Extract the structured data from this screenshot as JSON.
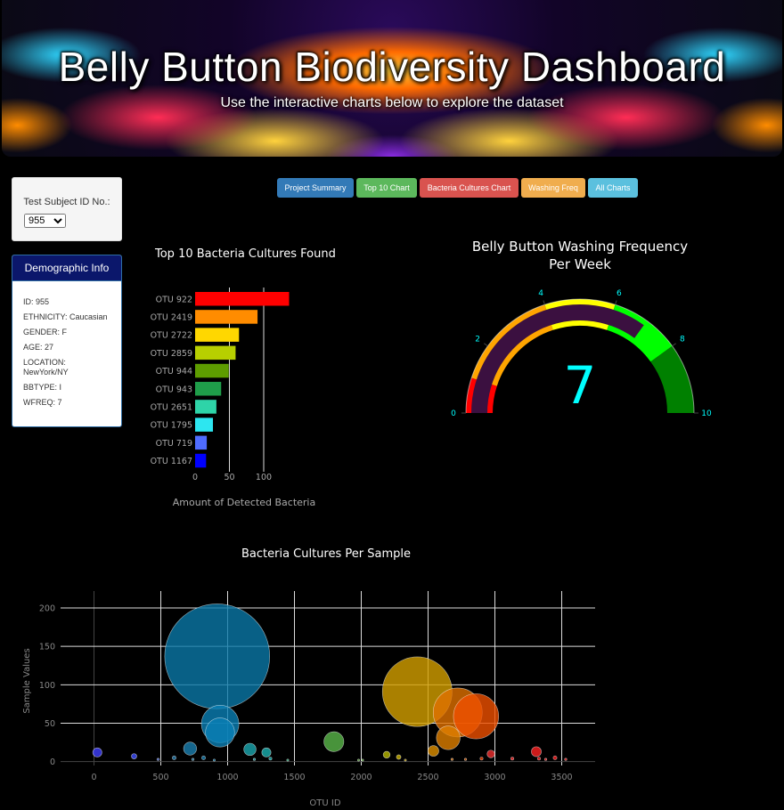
{
  "header": {
    "title": "Belly Button Biodiversity Dashboard",
    "subtitle": "Use the interactive charts below to explore the dataset"
  },
  "selector": {
    "label": "Test Subject ID No.:",
    "selected": "955"
  },
  "demographics": {
    "title": "Demographic Info",
    "lines": [
      "ID: 955",
      "ETHNICITY: Caucasian",
      "GENDER: F",
      "AGE: 27",
      "LOCATION: NewYork/NY",
      "BBTYPE: I",
      "WFREQ: 7"
    ]
  },
  "buttons": [
    {
      "label": "Project Summary",
      "color": "#337ab7"
    },
    {
      "label": "Top 10 Chart",
      "color": "#5cb85c"
    },
    {
      "label": "Bacteria Cultures Chart",
      "color": "#d9534f"
    },
    {
      "label": "Washing Freq",
      "color": "#f0ad4e"
    },
    {
      "label": "All Charts",
      "color": "#5bc0de"
    }
  ],
  "chart_data": [
    {
      "type": "bar",
      "orientation": "horizontal",
      "title": "Top 10 Bacteria Cultures Found",
      "xlabel": "Amount of Detected Bacteria",
      "ylabel": "",
      "categories": [
        "OTU 922",
        "OTU 2419",
        "OTU 2722",
        "OTU 2859",
        "OTU 944",
        "OTU 943",
        "OTU 2651",
        "OTU 1795",
        "OTU 719",
        "OTU 1167"
      ],
      "values": [
        137,
        91,
        64,
        59,
        49,
        38,
        31,
        26,
        17,
        16
      ],
      "colors": [
        "#ff0000",
        "#ff8c00",
        "#ffd700",
        "#b7cf00",
        "#5e9d00",
        "#1f9e4a",
        "#2ed4a8",
        "#2de6f0",
        "#4f6cff",
        "#0000ff"
      ],
      "xticks": [
        0,
        50,
        100
      ],
      "xlim": [
        0,
        140
      ],
      "grid": "vertical"
    },
    {
      "type": "gauge",
      "title": "Belly Button Washing Frequency Per Week",
      "value": 7,
      "range": [
        0,
        10
      ],
      "ticks": [
        0,
        2,
        4,
        6,
        8,
        10
      ],
      "steps": [
        {
          "range": [
            0,
            1
          ],
          "color": "#ff0000"
        },
        {
          "range": [
            1,
            4
          ],
          "color": "#ffa500"
        },
        {
          "range": [
            4,
            6
          ],
          "color": "#ffff00"
        },
        {
          "range": [
            6,
            8
          ],
          "color": "#00ff00"
        },
        {
          "range": [
            8,
            10
          ],
          "color": "#008000"
        }
      ],
      "bar_color": "#3b1040",
      "value_color": "#00ffff"
    },
    {
      "type": "scatter",
      "subtype": "bubble",
      "title": "Bacteria Cultures Per Sample",
      "xlabel": "OTU ID",
      "ylabel": "Sample Values",
      "xlim": [
        -250,
        3750
      ],
      "ylim": [
        -5,
        222
      ],
      "xticks": [
        0,
        500,
        1000,
        1500,
        2000,
        2500,
        3000,
        3500
      ],
      "yticks": [
        0,
        50,
        100,
        150,
        200
      ],
      "points": [
        {
          "x": 25,
          "y": 12,
          "s": 12,
          "c": "#4040ff"
        },
        {
          "x": 300,
          "y": 7,
          "s": 7,
          "c": "#4050ff"
        },
        {
          "x": 480,
          "y": 3,
          "s": 3,
          "c": "#4060d0"
        },
        {
          "x": 600,
          "y": 5,
          "s": 5,
          "c": "#2a7fb0"
        },
        {
          "x": 719,
          "y": 17,
          "s": 17,
          "c": "#1a7fb0"
        },
        {
          "x": 740,
          "y": 3,
          "s": 3,
          "c": "#1a7fb0"
        },
        {
          "x": 820,
          "y": 5,
          "s": 5,
          "c": "#1a7fb0"
        },
        {
          "x": 922,
          "y": 137,
          "s": 137,
          "c": "#0a78a8"
        },
        {
          "x": 943,
          "y": 38,
          "s": 38,
          "c": "#0a7fb5"
        },
        {
          "x": 944,
          "y": 49,
          "s": 49,
          "c": "#0a7fb5"
        },
        {
          "x": 900,
          "y": 2,
          "s": 2,
          "c": "#0a7fb5"
        },
        {
          "x": 1167,
          "y": 16,
          "s": 16,
          "c": "#1aa8b0"
        },
        {
          "x": 1200,
          "y": 3,
          "s": 3,
          "c": "#1aa8b0"
        },
        {
          "x": 1290,
          "y": 12,
          "s": 12,
          "c": "#1ab0b0"
        },
        {
          "x": 1320,
          "y": 4,
          "s": 4,
          "c": "#1ab0b0"
        },
        {
          "x": 1450,
          "y": 2,
          "s": 2,
          "c": "#30b080"
        },
        {
          "x": 1795,
          "y": 26,
          "s": 26,
          "c": "#5ab84a"
        },
        {
          "x": 1980,
          "y": 2,
          "s": 2,
          "c": "#6ab84a"
        },
        {
          "x": 2010,
          "y": 2,
          "s": 2,
          "c": "#6ab84a"
        },
        {
          "x": 2190,
          "y": 9,
          "s": 9,
          "c": "#b8b800"
        },
        {
          "x": 2280,
          "y": 6,
          "s": 6,
          "c": "#c8b000"
        },
        {
          "x": 2330,
          "y": 2,
          "s": 2,
          "c": "#c8a000"
        },
        {
          "x": 2419,
          "y": 91,
          "s": 91,
          "c": "#d4a000"
        },
        {
          "x": 2540,
          "y": 14,
          "s": 14,
          "c": "#e09000"
        },
        {
          "x": 2651,
          "y": 31,
          "s": 31,
          "c": "#e08000"
        },
        {
          "x": 2680,
          "y": 3,
          "s": 3,
          "c": "#e07000"
        },
        {
          "x": 2722,
          "y": 64,
          "s": 64,
          "c": "#e07000"
        },
        {
          "x": 2780,
          "y": 3,
          "s": 3,
          "c": "#e06000"
        },
        {
          "x": 2859,
          "y": 59,
          "s": 59,
          "c": "#f05000"
        },
        {
          "x": 2900,
          "y": 4,
          "s": 4,
          "c": "#f04000"
        },
        {
          "x": 2970,
          "y": 10,
          "s": 10,
          "c": "#f03030"
        },
        {
          "x": 3130,
          "y": 4,
          "s": 4,
          "c": "#ff3030"
        },
        {
          "x": 3310,
          "y": 13,
          "s": 13,
          "c": "#ff2020"
        },
        {
          "x": 3330,
          "y": 4,
          "s": 4,
          "c": "#ff2020"
        },
        {
          "x": 3380,
          "y": 3,
          "s": 3,
          "c": "#ff2020"
        },
        {
          "x": 3450,
          "y": 5,
          "s": 5,
          "c": "#ff2020"
        },
        {
          "x": 3530,
          "y": 3,
          "s": 3,
          "c": "#ff2020"
        }
      ],
      "grid": true
    }
  ]
}
